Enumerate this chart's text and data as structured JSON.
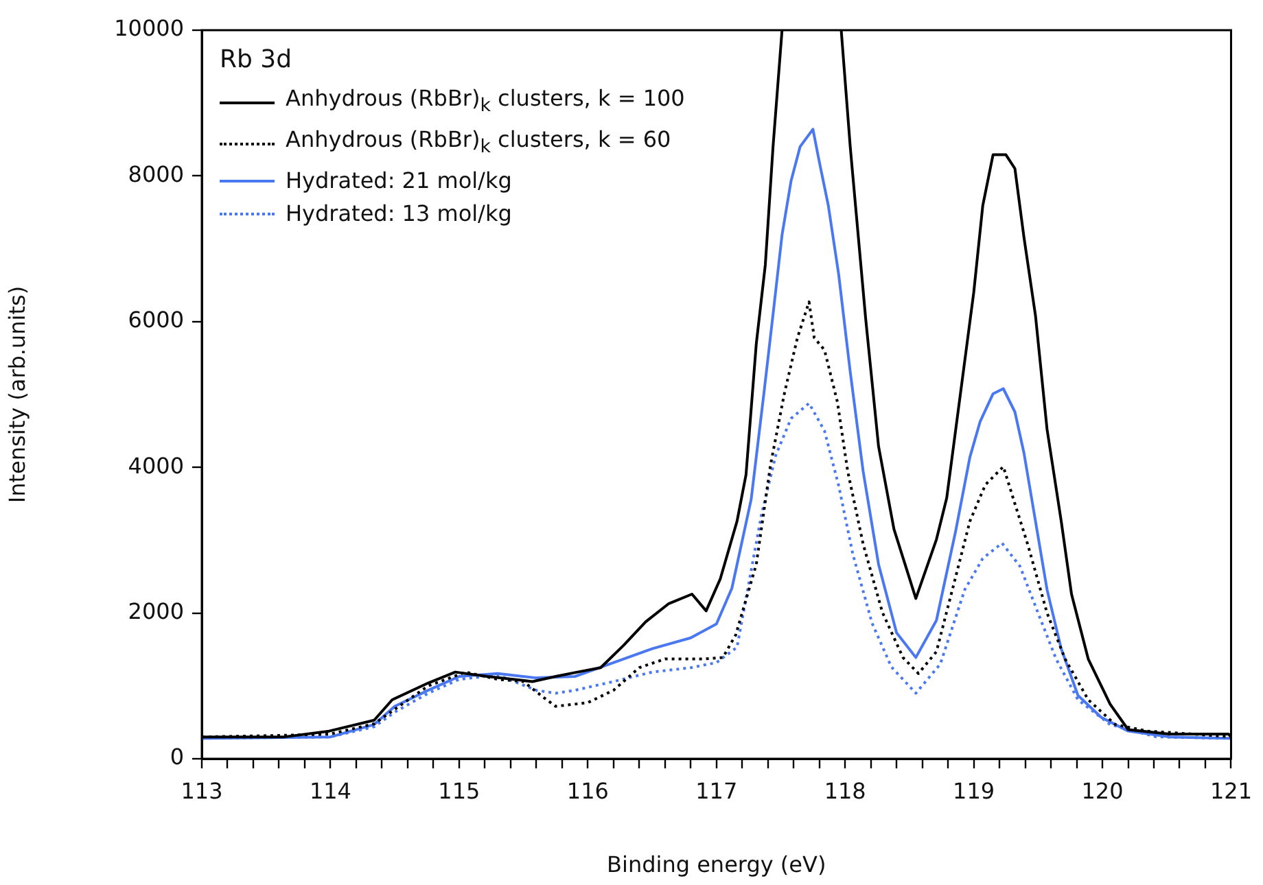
{
  "chart_data": {
    "type": "line",
    "xlabel": "Binding energy (eV)",
    "ylabel": "Intensity (arb.units)",
    "legend_title": "Rb 3d",
    "legend": "top left",
    "marker": "none",
    "grid": false,
    "xlim": [
      113,
      121
    ],
    "ylim": [
      0,
      10000
    ],
    "xticks": [
      113,
      {
        "value": 113.2,
        "label": null
      },
      {
        "value": 113.4,
        "label": null
      },
      {
        "value": 113.6,
        "label": null
      },
      {
        "value": 113.8,
        "label": null
      },
      114,
      {
        "value": 114.2,
        "label": null
      },
      {
        "value": 114.4,
        "label": null
      },
      {
        "value": 114.6,
        "label": null
      },
      {
        "value": 114.8,
        "label": null
      },
      115,
      {
        "value": 115.2,
        "label": null
      },
      {
        "value": 115.4,
        "label": null
      },
      {
        "value": 115.6,
        "label": null
      },
      {
        "value": 115.8,
        "label": null
      },
      116,
      {
        "value": 116.2,
        "label": null
      },
      {
        "value": 116.4,
        "label": null
      },
      {
        "value": 116.6,
        "label": null
      },
      {
        "value": 116.8,
        "label": null
      },
      117,
      {
        "value": 117.2,
        "label": null
      },
      {
        "value": 117.4,
        "label": null
      },
      {
        "value": 117.6,
        "label": null
      },
      {
        "value": 117.8,
        "label": null
      },
      118,
      {
        "value": 118.2,
        "label": null
      },
      {
        "value": 118.4,
        "label": null
      },
      {
        "value": 118.6,
        "label": null
      },
      {
        "value": 118.8,
        "label": null
      },
      119,
      {
        "value": 119.2,
        "label": null
      },
      {
        "value": 119.4,
        "label": null
      },
      {
        "value": 119.6,
        "label": null
      },
      {
        "value": 119.8,
        "label": null
      },
      120,
      {
        "value": 120.2,
        "label": null
      },
      {
        "value": 120.4,
        "label": null
      },
      {
        "value": 120.6,
        "label": null
      },
      {
        "value": 120.8,
        "label": null
      },
      121
    ],
    "yticks": [
      0,
      2000,
      4000,
      6000,
      8000,
      10000
    ],
    "series": [
      {
        "name": "Anhydrous (RbBr)$_{k}$ clusters, k = 100",
        "color": "#000000",
        "line_style": "solid",
        "x": [
          113,
          113.64,
          113.99,
          114.34,
          114.48,
          114.76,
          114.97,
          115.22,
          115.57,
          115.75,
          115.92,
          116.1,
          116.28,
          116.45,
          116.63,
          116.81,
          116.92,
          117.03,
          117.16,
          117.23,
          117.31,
          117.38,
          117.44,
          117.51,
          117.74,
          117.97,
          118.04,
          118.16,
          118.26,
          118.38,
          118.55,
          118.71,
          118.79,
          118.93,
          119.0,
          119.07,
          119.15,
          119.25,
          119.32,
          119.39,
          119.48,
          119.57,
          119.68,
          119.76,
          119.89,
          120.06,
          120.2,
          120.52,
          120.98,
          121
        ],
        "values": [
          300,
          300,
          380,
          530,
          810,
          1040,
          1190,
          1130,
          1060,
          1130,
          1190,
          1250,
          1560,
          1880,
          2130,
          2260,
          2030,
          2470,
          3260,
          3900,
          5700,
          6780,
          8400,
          10000,
          null,
          10000,
          8400,
          6040,
          4290,
          3150,
          2200,
          3010,
          3580,
          5460,
          6400,
          7590,
          8290,
          8290,
          8100,
          7160,
          6080,
          4520,
          3260,
          2260,
          1370,
          750,
          400,
          340,
          340,
          300
        ]
      },
      {
        "name": "Anhydrous (RbBr)$_{k}$ clusters, k = 60",
        "color": "#000000",
        "line_style": "dotted",
        "x": [
          113,
          113.6,
          114,
          114.34,
          114.5,
          114.76,
          115.05,
          115.3,
          115.5,
          115.65,
          115.75,
          116.0,
          116.2,
          116.4,
          116.6,
          116.9,
          117.05,
          117.15,
          117.31,
          117.42,
          117.53,
          117.63,
          117.72,
          117.76,
          117.84,
          117.94,
          118.02,
          118.14,
          118.29,
          118.45,
          118.57,
          118.71,
          118.86,
          118.97,
          119.09,
          119.23,
          119.32,
          119.42,
          119.57,
          119.71,
          119.89,
          120.1,
          120.35,
          120.7,
          121
        ],
        "values": [
          300,
          320,
          340,
          480,
          680,
          1000,
          1190,
          1090,
          1060,
          850,
          720,
          770,
          940,
          1250,
          1370,
          1370,
          1390,
          1700,
          2670,
          4030,
          5030,
          5780,
          6270,
          5780,
          5610,
          4900,
          3950,
          2950,
          2010,
          1390,
          1170,
          1470,
          2500,
          3260,
          3760,
          4010,
          3500,
          2940,
          2000,
          1370,
          810,
          470,
          380,
          340,
          300
        ]
      },
      {
        "name": "Hydrated: 21 mol/kg",
        "color": "#4a78f0",
        "line_style": "solid",
        "x": [
          113,
          114,
          114.34,
          114.5,
          114.76,
          115.0,
          115.3,
          115.6,
          115.9,
          116.2,
          116.5,
          116.8,
          117.0,
          117.12,
          117.27,
          117.37,
          117.44,
          117.51,
          117.58,
          117.65,
          117.75,
          117.8,
          117.87,
          117.95,
          118.04,
          118.14,
          118.26,
          118.4,
          118.55,
          118.71,
          118.86,
          118.97,
          119.05,
          119.15,
          119.23,
          119.32,
          119.39,
          119.48,
          119.57,
          119.68,
          119.81,
          119.99,
          120.2,
          120.52,
          121
        ],
        "values": [
          280,
          300,
          470,
          720,
          940,
          1130,
          1170,
          1110,
          1130,
          1320,
          1510,
          1660,
          1850,
          2340,
          3560,
          5030,
          6100,
          7190,
          7930,
          8400,
          8640,
          8190,
          7590,
          6650,
          5310,
          3950,
          2670,
          1730,
          1390,
          1900,
          3130,
          4140,
          4630,
          5010,
          5080,
          4760,
          4200,
          3260,
          2320,
          1510,
          870,
          570,
          380,
          300,
          280
        ]
      },
      {
        "name": "Hydrated: 13 mol/kg",
        "color": "#4a78f0",
        "line_style": "dotted",
        "x": [
          113,
          114,
          114.34,
          114.5,
          114.76,
          115.0,
          115.3,
          115.6,
          115.75,
          115.9,
          116.2,
          116.5,
          116.8,
          117.0,
          117.16,
          117.23,
          117.35,
          117.46,
          117.58,
          117.72,
          117.84,
          117.95,
          118.06,
          118.21,
          118.36,
          118.55,
          118.74,
          118.93,
          119.07,
          119.22,
          119.36,
          119.5,
          119.64,
          119.81,
          120.06,
          120.42,
          121
        ],
        "values": [
          280,
          300,
          440,
          640,
          900,
          1090,
          1150,
          940,
          900,
          940,
          1060,
          1190,
          1250,
          1320,
          1530,
          2200,
          3350,
          4160,
          4670,
          4880,
          4500,
          3750,
          2810,
          1860,
          1260,
          900,
          1300,
          2320,
          2750,
          2960,
          2640,
          2000,
          1370,
          810,
          470,
          300,
          280
        ]
      }
    ]
  }
}
